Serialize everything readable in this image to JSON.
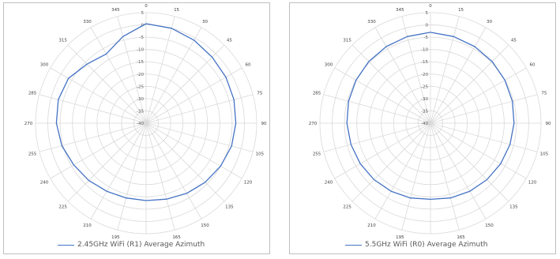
{
  "chart_data": [
    {
      "type": "radar",
      "angular_labels": [
        "0",
        "15",
        "30",
        "45",
        "60",
        "75",
        "90",
        "105",
        "120",
        "135",
        "150",
        "165",
        "180",
        "195",
        "210",
        "225",
        "240",
        "255",
        "270",
        "285",
        "300",
        "315",
        "330",
        "345"
      ],
      "radial_ticks": [
        "5",
        "0",
        "-5",
        "-10",
        "-15",
        "-20",
        "-25",
        "-30",
        "-35",
        "-40"
      ],
      "rlim": [
        -40,
        5
      ],
      "grid": true,
      "legend_position": "bottom",
      "series": [
        {
          "name": "2.45GHz WiFi (R1) Average Azimuth",
          "color": "#4472c4",
          "values": [
            0.5,
            0,
            -1,
            -2,
            -2.5,
            -3,
            -3.5,
            -4,
            -5,
            -6,
            -7,
            -8,
            -8.5,
            -8.5,
            -8,
            -7,
            -6,
            -4.5,
            -3.5,
            -3,
            -3.5,
            -6,
            -7.5,
            -3.5
          ]
        }
      ]
    },
    {
      "type": "radar",
      "angular_labels": [
        "0",
        "15",
        "30",
        "45",
        "60",
        "75",
        "90",
        "105",
        "120",
        "135",
        "150",
        "165",
        "180",
        "195",
        "210",
        "225",
        "240",
        "255",
        "270",
        "285",
        "300",
        "315",
        "330",
        "345"
      ],
      "radial_ticks": [
        "5",
        "0",
        "-5",
        "-10",
        "-15",
        "-20",
        "-25",
        "-30",
        "-35",
        "-40"
      ],
      "rlim": [
        -40,
        5
      ],
      "grid": true,
      "legend_position": "bottom",
      "series": [
        {
          "name": "5.5GHz WiFi (R0) Average Azimuth",
          "color": "#4472c4",
          "values": [
            -3,
            -3.5,
            -4,
            -4.5,
            -5,
            -5.5,
            -6,
            -6.5,
            -7,
            -7.5,
            -8,
            -8.5,
            -9,
            -8.5,
            -8,
            -7.5,
            -7,
            -6.5,
            -6,
            -5.5,
            -5,
            -4.5,
            -4,
            -3.5
          ]
        }
      ]
    }
  ]
}
